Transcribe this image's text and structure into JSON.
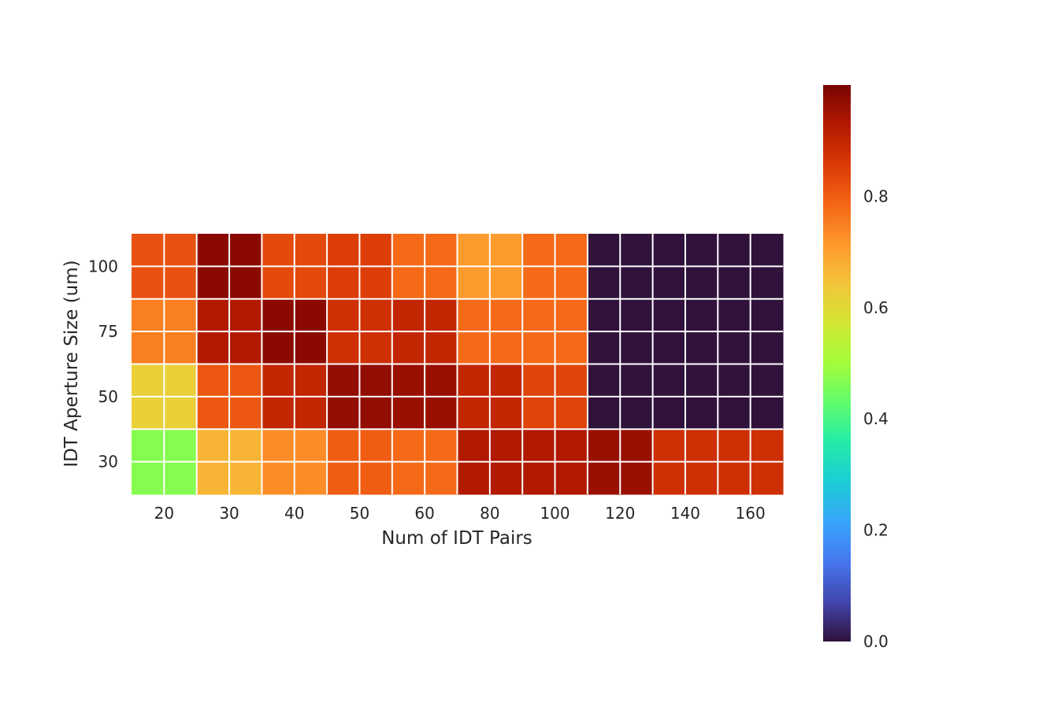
{
  "chart_data": {
    "type": "heatmap",
    "title": "",
    "xlabel": "Num of IDT Pairs",
    "ylabel": "IDT Aperture Size (um)",
    "x_categories": [
      "20",
      "30",
      "40",
      "50",
      "60",
      "80",
      "100",
      "120",
      "140",
      "160"
    ],
    "y_categories": [
      "100",
      "75",
      "50",
      "30"
    ],
    "values": [
      [
        0.82,
        0.98,
        0.83,
        0.85,
        0.78,
        0.71,
        0.78,
        0.0,
        0.0,
        0.0
      ],
      [
        0.75,
        0.93,
        0.98,
        0.88,
        0.9,
        0.78,
        0.78,
        0.0,
        0.0,
        0.0
      ],
      [
        0.62,
        0.81,
        0.9,
        0.97,
        0.96,
        0.9,
        0.84,
        0.0,
        0.0,
        0.0
      ],
      [
        0.47,
        0.67,
        0.73,
        0.8,
        0.78,
        0.93,
        0.93,
        0.96,
        0.88,
        0.88
      ]
    ],
    "colorbar": {
      "colormap": "turbo",
      "min": 0.0,
      "max": 1.0,
      "ticks": [
        "0.0",
        "0.2",
        "0.4",
        "0.6",
        "0.8"
      ]
    },
    "grid": true
  }
}
